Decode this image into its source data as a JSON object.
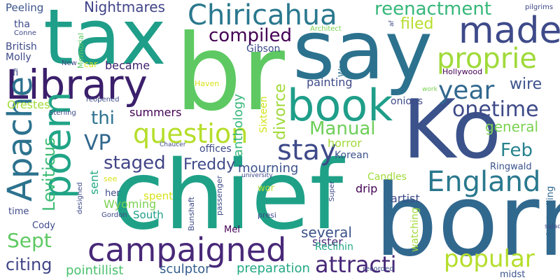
{
  "words": [
    {
      "text": "tax",
      "color": "#1f9e89"
    },
    {
      "text": "say",
      "color": "#2c728e"
    },
    {
      "text": "br",
      "color": "#5ec962"
    },
    {
      "text": "chief",
      "color": "#1fa187"
    },
    {
      "text": "born",
      "color": "#31688e"
    },
    {
      "text": "Ko",
      "color": "#3b528b"
    },
    {
      "text": "Library",
      "color": "#3b1f6b"
    },
    {
      "text": "book",
      "color": "#1f9e89"
    },
    {
      "text": "made",
      "color": "#3e4a89"
    },
    {
      "text": "campaigned",
      "color": "#482878"
    },
    {
      "text": "Chiricahua",
      "color": "#2a788e"
    },
    {
      "text": "poem",
      "color": "#20a486"
    },
    {
      "text": "Apache",
      "color": "#2c728e"
    },
    {
      "text": "question",
      "color": "#b5de2b"
    },
    {
      "text": "England",
      "color": "#2a788e"
    },
    {
      "text": "stay",
      "color": "#3e4a89"
    },
    {
      "text": "year",
      "color": "#31688e"
    },
    {
      "text": "proprie",
      "color": "#a0da39"
    },
    {
      "text": "attracti",
      "color": "#482878"
    },
    {
      "text": "popular",
      "color": "#b5de2b"
    },
    {
      "text": "onetime",
      "color": "#3e4a89"
    },
    {
      "text": "reenactment",
      "color": "#35b779"
    },
    {
      "text": "compiled",
      "color": "#440154"
    },
    {
      "text": "Manual",
      "color": "#6ece58"
    },
    {
      "text": "Feb",
      "color": "#26828e"
    },
    {
      "text": "VP",
      "color": "#31688e"
    },
    {
      "text": "staged",
      "color": "#414487"
    },
    {
      "text": "Sept",
      "color": "#5ec962"
    },
    {
      "text": "Freddy",
      "color": "#3e4a89"
    },
    {
      "text": "wire",
      "color": "#3b528b"
    },
    {
      "text": "thi",
      "color": "#2c728e"
    },
    {
      "text": "general",
      "color": "#7ad151"
    },
    {
      "text": "Leviticus",
      "color": "#3dbc74"
    },
    {
      "text": "filed",
      "color": "#b5de2b"
    },
    {
      "text": "Nightmares",
      "color": "#414487"
    },
    {
      "text": "citing",
      "color": "#404688"
    },
    {
      "text": "several",
      "color": "#3b528b"
    },
    {
      "text": "preparation",
      "color": "#22a884"
    },
    {
      "text": "sculptor",
      "color": "#355f8d"
    },
    {
      "text": "pointillist",
      "color": "#4ac16d"
    },
    {
      "text": "mourning",
      "color": "#3b528b"
    },
    {
      "text": "divorce",
      "color": "#a0da39"
    },
    {
      "text": "anthology",
      "color": "#35b779"
    },
    {
      "text": "painting",
      "color": "#3e4a89"
    },
    {
      "text": "became",
      "color": "#3b1f6b"
    },
    {
      "text": "summers",
      "color": "#440154"
    },
    {
      "text": "Orestes",
      "color": "#a0da39"
    },
    {
      "text": "sent",
      "color": "#22a884"
    },
    {
      "text": "Sixteen",
      "color": "#d2e21b"
    },
    {
      "text": "horror",
      "color": "#a0da39"
    },
    {
      "text": "Korean",
      "color": "#3b528b"
    },
    {
      "text": "offices",
      "color": "#3e4a89"
    },
    {
      "text": "onions",
      "color": "#3e4a89"
    },
    {
      "text": "Wyoming",
      "color": "#7ad151"
    },
    {
      "text": "South",
      "color": "#1f9e89"
    },
    {
      "text": "spent",
      "color": "#d8e219"
    },
    {
      "text": "artist",
      "color": "#3e4a89"
    },
    {
      "text": "sister",
      "color": "#482878"
    },
    {
      "text": "drip",
      "color": "#440154"
    },
    {
      "text": "Candles",
      "color": "#a0da39"
    },
    {
      "text": "Ringwald",
      "color": "#3b528b"
    },
    {
      "text": "Reclinin",
      "color": "#22a884"
    },
    {
      "text": "watching",
      "color": "#a0da39"
    },
    {
      "text": "bestselling",
      "color": "#31688e"
    },
    {
      "text": "midst",
      "color": "#3b528b"
    },
    {
      "text": "Gibson",
      "color": "#3e4a89"
    },
    {
      "text": "Peeling",
      "color": "#3b528b"
    },
    {
      "text": "British",
      "color": "#3e4a89"
    },
    {
      "text": "Molly",
      "color": "#3e4a89"
    },
    {
      "text": "tha",
      "color": "#3e4a89"
    },
    {
      "text": "Cody",
      "color": "#3e4a89"
    },
    {
      "text": "time",
      "color": "#3e4a89"
    },
    {
      "text": "Mel",
      "color": "#440154"
    },
    {
      "text": "her",
      "color": "#3e4a89"
    },
    {
      "text": "car",
      "color": "#d8e219"
    },
    {
      "text": "Haven",
      "color": "#d8e219"
    },
    {
      "text": "Hollywood",
      "color": "#440154"
    },
    {
      "text": "Architect",
      "color": "#7ad151"
    },
    {
      "text": "pilgrims",
      "color": "#3e4a89"
    },
    {
      "text": "Memorial",
      "color": "#5ec962"
    },
    {
      "text": "War",
      "color": "#2c728e"
    },
    {
      "text": "Sterling",
      "color": "#3e4a89"
    },
    {
      "text": "reopened",
      "color": "#3e4a89"
    },
    {
      "text": "Chaucer",
      "color": "#3e4a89"
    },
    {
      "text": "university",
      "color": "#3e4a89"
    },
    {
      "text": "designed",
      "color": "#3e4a89"
    },
    {
      "text": "see",
      "color": "#d8e219"
    },
    {
      "text": "wor",
      "color": "#b5de2b"
    },
    {
      "text": "Gordon",
      "color": "#3e4a89"
    },
    {
      "text": "Bunshaft",
      "color": "#3e4a89"
    },
    {
      "text": "presi",
      "color": "#3e4a89"
    },
    {
      "text": "passenger",
      "color": "#3e4a89"
    },
    {
      "text": "recorded",
      "color": "#3e4a89"
    },
    {
      "text": "salad",
      "color": "#3e4a89"
    },
    {
      "text": "Super",
      "color": "#3e4a89"
    },
    {
      "text": "work",
      "color": "#7ad151"
    },
    {
      "text": "fi",
      "color": "#3e4a89"
    },
    {
      "text": "Conne",
      "color": "#3e4a89"
    },
    {
      "text": "New",
      "color": "#3e4a89"
    },
    {
      "text": "af",
      "color": "#3e4a89"
    }
  ]
}
